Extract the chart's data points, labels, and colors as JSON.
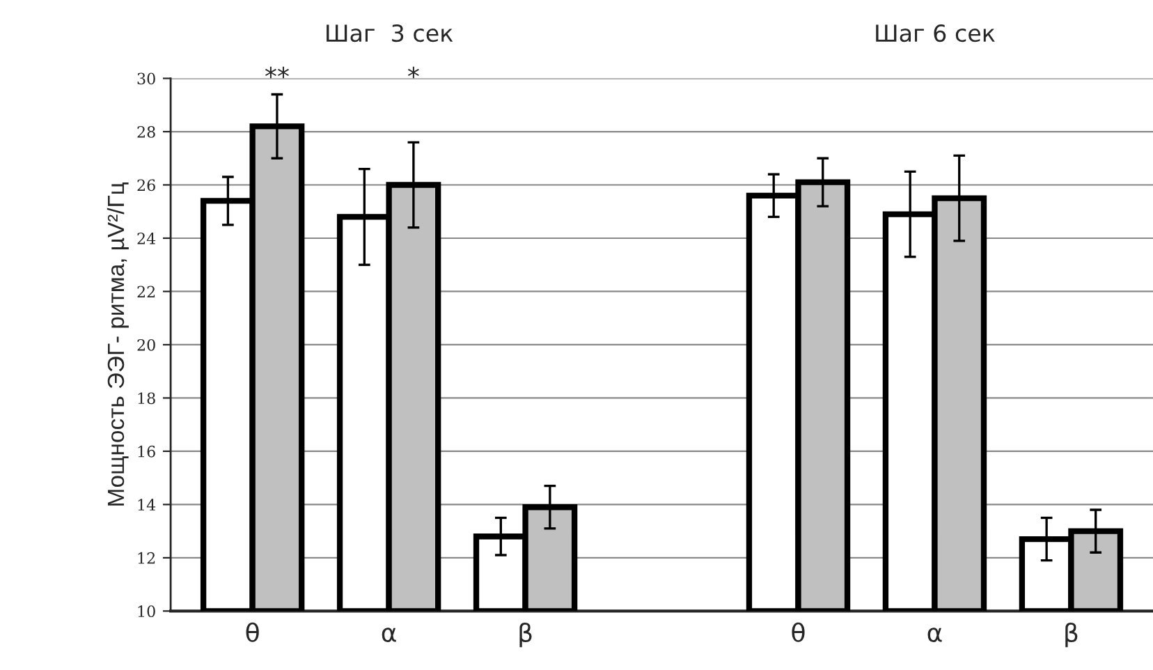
{
  "chart_data": {
    "type": "bar",
    "categories": [
      "θ",
      "α",
      "β",
      null,
      "θ",
      "α",
      "β"
    ],
    "series": [
      {
        "color": "#ffffff",
        "values": [
          25.4,
          24.8,
          12.8,
          null,
          25.6,
          24.9,
          12.7
        ],
        "errors": [
          0.9,
          1.8,
          0.7,
          null,
          0.8,
          1.6,
          0.8
        ]
      },
      {
        "color": "#c0c0c0",
        "values": [
          28.2,
          26.0,
          13.9,
          null,
          26.1,
          25.5,
          13.0
        ],
        "errors": [
          1.2,
          1.6,
          0.8,
          null,
          0.9,
          1.6,
          0.8
        ]
      }
    ],
    "ylabel": "Мощность ЭЭГ- ритма, µV²/Гц",
    "ylim": [
      10,
      30
    ],
    "yticks": [
      10,
      12,
      14,
      16,
      18,
      20,
      22,
      24,
      26,
      28,
      30
    ],
    "grid": "y",
    "legend": false,
    "annotations": [
      "Шаг  3 сек",
      "Шаг 6 сек",
      "**",
      "*"
    ]
  }
}
